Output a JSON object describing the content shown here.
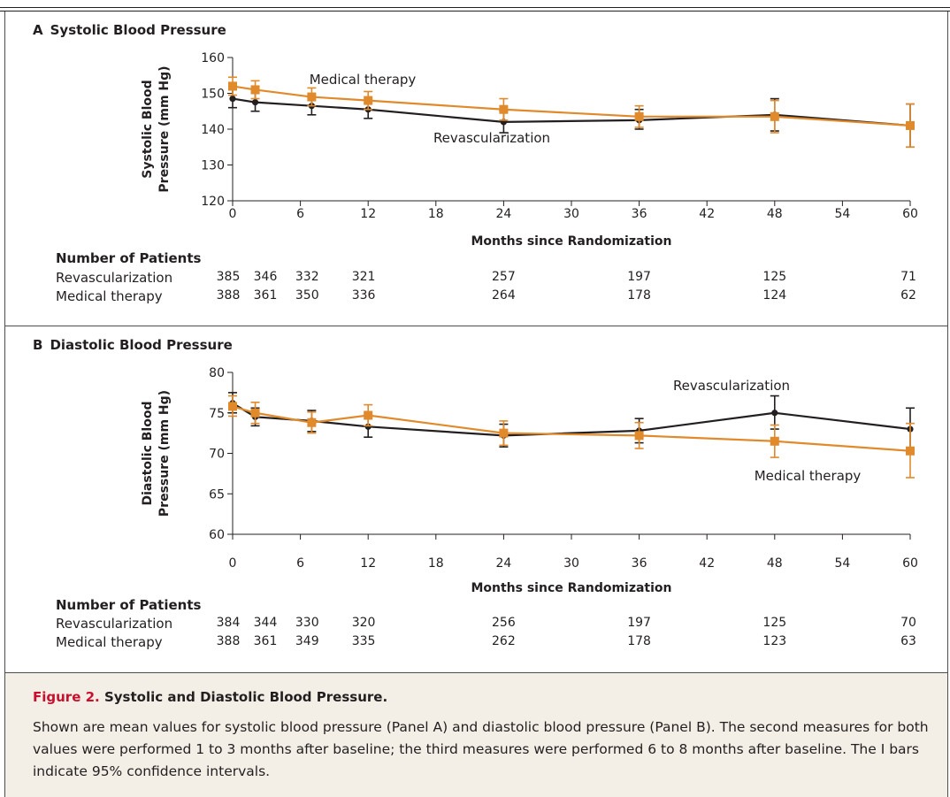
{
  "chart_data": [
    {
      "panel": "A",
      "type": "line",
      "title": "Systolic Blood Pressure",
      "xlabel": "Months since Randomization",
      "ylabel": [
        "Systolic Blood",
        "Pressure (mm Hg)"
      ],
      "xlim": [
        0,
        60
      ],
      "ylim": [
        120,
        160
      ],
      "xticks": [
        0,
        6,
        12,
        18,
        24,
        30,
        36,
        42,
        48,
        54,
        60
      ],
      "yticks": [
        120,
        130,
        140,
        150,
        160
      ],
      "series": [
        {
          "name": "Revascularization",
          "color": "#231f20",
          "marker": "circle",
          "x": [
            0,
            2,
            7,
            12,
            24,
            36,
            48,
            60
          ],
          "y": [
            148.5,
            147.5,
            146.5,
            145.5,
            142,
            142.5,
            144,
            141
          ],
          "lo": [
            146,
            145,
            144,
            143,
            139,
            140,
            139.5,
            135
          ],
          "hi": [
            151,
            150,
            149,
            148,
            145,
            145.5,
            148.5,
            147
          ]
        },
        {
          "name": "Medical therapy",
          "color": "#e08a2c",
          "marker": "square",
          "x": [
            0,
            2,
            7,
            12,
            24,
            36,
            48,
            60
          ],
          "y": [
            152,
            151,
            149,
            148,
            145.5,
            143.5,
            143.5,
            141
          ],
          "lo": [
            149.5,
            148.5,
            146.5,
            145.5,
            142.5,
            140.5,
            139,
            135
          ],
          "hi": [
            154.5,
            153.5,
            151.5,
            150.5,
            148.5,
            146.5,
            148,
            147
          ]
        }
      ],
      "annotations": [
        {
          "text": "Medical therapy"
        },
        {
          "text": "Revascularization"
        }
      ]
    },
    {
      "panel": "B",
      "type": "line",
      "title": "Diastolic Blood Pressure",
      "xlabel": "Months since Randomization",
      "ylabel": [
        "Diastolic Blood",
        "Pressure (mm Hg)"
      ],
      "xlim": [
        0,
        60
      ],
      "ylim": [
        60,
        80
      ],
      "xticks": [
        0,
        6,
        12,
        18,
        24,
        30,
        36,
        42,
        48,
        54,
        60
      ],
      "yticks": [
        60,
        65,
        70,
        75,
        80
      ],
      "series": [
        {
          "name": "Revascularization",
          "color": "#231f20",
          "marker": "circle",
          "x": [
            0,
            2,
            7,
            12,
            24,
            36,
            48,
            60
          ],
          "y": [
            76.2,
            74.5,
            74,
            73.3,
            72.2,
            72.8,
            75,
            73
          ],
          "lo": [
            75,
            73.4,
            72.7,
            72,
            70.8,
            71.3,
            73,
            70.4
          ],
          "hi": [
            77.5,
            75.6,
            75.3,
            74.6,
            73.6,
            74.3,
            77.1,
            75.6
          ]
        },
        {
          "name": "Medical therapy",
          "color": "#e08a2c",
          "marker": "square",
          "x": [
            0,
            2,
            7,
            12,
            24,
            36,
            48,
            60
          ],
          "y": [
            75.8,
            75,
            73.8,
            74.7,
            72.5,
            72.2,
            71.5,
            70.3
          ],
          "lo": [
            74.6,
            73.7,
            72.5,
            73.4,
            71,
            70.6,
            69.5,
            67
          ],
          "hi": [
            77.1,
            76.3,
            75.1,
            76,
            74,
            73.8,
            73.5,
            73.7
          ]
        }
      ],
      "annotations": [
        {
          "text": "Revascularization"
        },
        {
          "text": "Medical therapy"
        }
      ]
    }
  ],
  "panels": {
    "A": {
      "letter": "A",
      "title": "Systolic Blood Pressure",
      "patients_header": "Number of Patients",
      "rows": [
        {
          "label": "Revascularization",
          "values": [
            "385",
            "346",
            "332",
            "321",
            "257",
            "197",
            "125",
            "71"
          ]
        },
        {
          "label": "Medical therapy",
          "values": [
            "388",
            "361",
            "350",
            "336",
            "264",
            "178",
            "124",
            "62"
          ]
        }
      ]
    },
    "B": {
      "letter": "B",
      "title": "Diastolic Blood Pressure",
      "patients_header": "Number of Patients",
      "rows": [
        {
          "label": "Revascularization",
          "values": [
            "384",
            "344",
            "330",
            "320",
            "256",
            "197",
            "125",
            "70"
          ]
        },
        {
          "label": "Medical therapy",
          "values": [
            "388",
            "361",
            "349",
            "335",
            "262",
            "178",
            "123",
            "63"
          ]
        }
      ]
    }
  },
  "caption": {
    "figure_label": "Figure 2.",
    "title": "Systolic and Diastolic Blood Pressure.",
    "body": "Shown are mean values for systolic blood pressure (Panel A) and diastolic blood pressure (Panel B). The second measures for both values were performed 1 to 3 months after baseline; the third measures were performed 6 to 8 months after baseline. The I bars indicate 95% confidence intervals."
  },
  "colors": {
    "revascularization": "#231f20",
    "medical_therapy": "#e08a2c",
    "figure_label": "#c8102e",
    "caption_background": "#f3efe6"
  }
}
